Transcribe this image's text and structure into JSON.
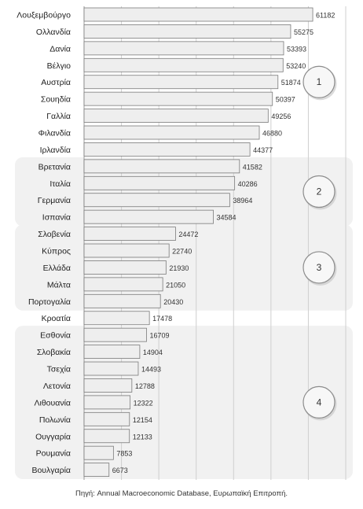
{
  "chart_data": {
    "type": "bar",
    "orientation": "horizontal",
    "categories": [
      "Λουξεμβούργο",
      "Ολλανδία",
      "Δανία",
      "Βέλγιο",
      "Αυστρία",
      "Σουηδία",
      "Γαλλία",
      "Φιλανδία",
      "Ιρλανδία",
      "Βρετανία",
      "Ιταλία",
      "Γερμανία",
      "Ισπανία",
      "Σλοβενία",
      "Κύπρος",
      "Ελλάδα",
      "Μάλτα",
      "Πορτογαλία",
      "Κροατία",
      "Εσθονία",
      "Σλοβακία",
      "Τσεχία",
      "Λετονία",
      "Λιθουανία",
      "Πολωνία",
      "Ουγγαρία",
      "Ρουμανία",
      "Βουλγαρία"
    ],
    "values": [
      61182,
      55275,
      53393,
      53240,
      51874,
      50397,
      49256,
      46880,
      44377,
      41582,
      40286,
      38964,
      34584,
      24472,
      22740,
      21930,
      21050,
      20430,
      17478,
      16709,
      14904,
      14493,
      12788,
      12322,
      12154,
      12133,
      7853,
      6673
    ],
    "xlim": [
      0,
      70000
    ],
    "grid": true,
    "groups": [
      {
        "label": "1",
        "from": 0,
        "to": 8
      },
      {
        "label": "2",
        "from": 9,
        "to": 12
      },
      {
        "label": "3",
        "from": 13,
        "to": 17
      },
      {
        "label": "4",
        "from": 19,
        "to": 27
      }
    ],
    "bar_color": "#eeeeee",
    "bar_border": "#7a7a7a",
    "group_band_color": "#f1f1f1"
  },
  "source": "Πηγή: Annual Macroeconomic Database, Ευρωπαϊκή Επιτροπή."
}
